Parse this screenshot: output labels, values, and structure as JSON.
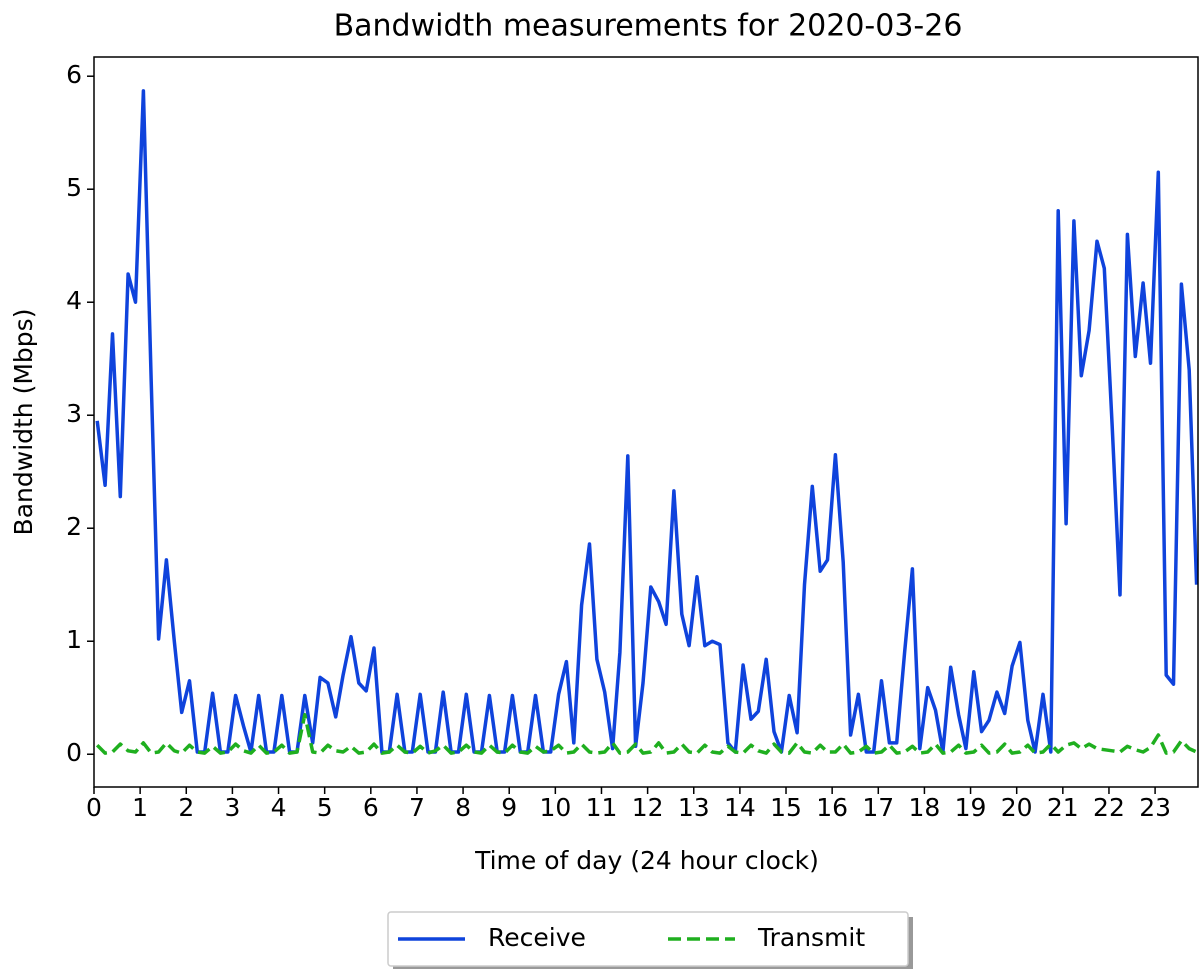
{
  "chart_data": {
    "type": "line",
    "title": "Bandwidth measurements for 2020-03-26",
    "xlabel": "Time of day (24 hour clock)",
    "ylabel": "Bandwidth (Mbps)",
    "x": [
      0.07,
      0.24,
      0.4,
      0.57,
      0.74,
      0.9,
      1.07,
      1.24,
      1.4,
      1.57,
      1.74,
      1.9,
      2.07,
      2.24,
      2.4,
      2.57,
      2.74,
      2.9,
      3.07,
      3.24,
      3.4,
      3.57,
      3.74,
      3.9,
      4.07,
      4.24,
      4.4,
      4.57,
      4.74,
      4.9,
      5.07,
      5.24,
      5.4,
      5.57,
      5.74,
      5.9,
      6.07,
      6.24,
      6.4,
      6.57,
      6.74,
      6.9,
      7.07,
      7.24,
      7.4,
      7.57,
      7.74,
      7.9,
      8.07,
      8.24,
      8.4,
      8.57,
      8.74,
      8.9,
      9.07,
      9.24,
      9.4,
      9.57,
      9.74,
      9.9,
      10.07,
      10.24,
      10.4,
      10.57,
      10.74,
      10.9,
      11.07,
      11.24,
      11.4,
      11.57,
      11.74,
      11.9,
      12.07,
      12.24,
      12.4,
      12.57,
      12.74,
      12.9,
      13.07,
      13.24,
      13.4,
      13.57,
      13.74,
      13.9,
      14.07,
      14.24,
      14.4,
      14.57,
      14.74,
      14.9,
      15.07,
      15.24,
      15.4,
      15.57,
      15.74,
      15.9,
      16.07,
      16.24,
      16.4,
      16.57,
      16.74,
      16.9,
      17.07,
      17.24,
      17.4,
      17.57,
      17.74,
      17.9,
      18.07,
      18.24,
      18.4,
      18.57,
      18.74,
      18.9,
      19.07,
      19.24,
      19.4,
      19.57,
      19.74,
      19.9,
      20.07,
      20.24,
      20.4,
      20.57,
      20.74,
      20.9,
      21.07,
      21.24,
      21.4,
      21.57,
      21.74,
      21.9,
      22.07,
      22.24,
      22.4,
      22.57,
      22.74,
      22.9,
      23.07,
      23.24,
      23.4,
      23.57,
      23.74,
      23.9
    ],
    "series": [
      {
        "name": "Receive",
        "color": "#0f43dc",
        "linestyle": "solid",
        "values": [
          2.95,
          2.38,
          3.72,
          2.28,
          4.25,
          4.0,
          5.87,
          3.3,
          1.02,
          1.72,
          1.0,
          0.37,
          0.65,
          0.02,
          0.02,
          0.54,
          0.02,
          0.02,
          0.52,
          0.25,
          0.02,
          0.52,
          0.02,
          0.02,
          0.52,
          0.02,
          0.02,
          0.52,
          0.1,
          0.68,
          0.63,
          0.33,
          0.7,
          1.04,
          0.63,
          0.56,
          0.94,
          0.02,
          0.02,
          0.53,
          0.02,
          0.02,
          0.53,
          0.02,
          0.02,
          0.55,
          0.02,
          0.02,
          0.53,
          0.02,
          0.02,
          0.52,
          0.02,
          0.02,
          0.52,
          0.02,
          0.02,
          0.52,
          0.02,
          0.02,
          0.53,
          0.82,
          0.1,
          1.32,
          1.86,
          0.84,
          0.55,
          0.05,
          0.9,
          2.64,
          0.07,
          0.63,
          1.48,
          1.35,
          1.15,
          2.33,
          1.24,
          0.96,
          1.57,
          0.96,
          1.0,
          0.97,
          0.1,
          0.02,
          0.79,
          0.31,
          0.38,
          0.84,
          0.2,
          0.02,
          0.52,
          0.19,
          1.5,
          2.37,
          1.62,
          1.72,
          2.65,
          1.7,
          0.17,
          0.53,
          0.02,
          0.02,
          0.65,
          0.1,
          0.1,
          0.9,
          1.64,
          0.05,
          0.59,
          0.39,
          0.02,
          0.77,
          0.35,
          0.05,
          0.73,
          0.2,
          0.3,
          0.55,
          0.36,
          0.78,
          0.99,
          0.3,
          0.02,
          0.53,
          0.02,
          4.81,
          2.04,
          4.72,
          3.35,
          3.75,
          4.54,
          4.3,
          2.9,
          1.41,
          4.6,
          3.52,
          4.17,
          3.46,
          5.15,
          0.7,
          0.62,
          4.16,
          3.4,
          1.5
        ]
      },
      {
        "name": "Transmit",
        "color": "#1faf1f",
        "linestyle": "dashed",
        "values": [
          0.08,
          0.01,
          0.02,
          0.09,
          0.03,
          0.02,
          0.1,
          0.01,
          0.02,
          0.1,
          0.03,
          0.01,
          0.08,
          0.02,
          0.01,
          0.07,
          0.01,
          0.02,
          0.09,
          0.03,
          0.01,
          0.08,
          0.01,
          0.02,
          0.08,
          0.01,
          0.02,
          0.35,
          0.02,
          0.01,
          0.08,
          0.03,
          0.02,
          0.07,
          0.01,
          0.02,
          0.09,
          0.01,
          0.02,
          0.08,
          0.02,
          0.01,
          0.07,
          0.01,
          0.03,
          0.08,
          0.01,
          0.02,
          0.08,
          0.02,
          0.01,
          0.08,
          0.02,
          0.01,
          0.08,
          0.02,
          0.01,
          0.07,
          0.02,
          0.03,
          0.08,
          0.01,
          0.02,
          0.09,
          0.02,
          0.01,
          0.02,
          0.1,
          0.01,
          0.02,
          0.09,
          0.01,
          0.02,
          0.1,
          0.01,
          0.02,
          0.09,
          0.02,
          0.01,
          0.08,
          0.02,
          0.01,
          0.07,
          0.02,
          0.01,
          0.08,
          0.03,
          0.01,
          0.09,
          0.02,
          0.01,
          0.1,
          0.02,
          0.01,
          0.08,
          0.02,
          0.02,
          0.09,
          0.01,
          0.02,
          0.07,
          0.01,
          0.02,
          0.08,
          0.01,
          0.02,
          0.07,
          0.01,
          0.02,
          0.09,
          0.01,
          0.02,
          0.08,
          0.01,
          0.02,
          0.08,
          0.01,
          0.02,
          0.09,
          0.01,
          0.02,
          0.08,
          0.01,
          0.02,
          0.09,
          0.02,
          0.08,
          0.1,
          0.05,
          0.09,
          0.05,
          0.04,
          0.03,
          0.02,
          0.07,
          0.04,
          0.02,
          0.06,
          0.17,
          0.01,
          0.02,
          0.12,
          0.05,
          0.02
        ]
      }
    ],
    "xlim": [
      0,
      23.93
    ],
    "xticks": [
      0,
      1,
      2,
      3,
      4,
      5,
      6,
      7,
      8,
      9,
      10,
      11,
      12,
      13,
      14,
      15,
      16,
      17,
      18,
      19,
      20,
      21,
      22,
      23
    ],
    "ylim": [
      -0.29,
      6.17
    ],
    "yticks": [
      0,
      1,
      2,
      3,
      4,
      5,
      6
    ],
    "grid": false,
    "legend": "bottom"
  }
}
